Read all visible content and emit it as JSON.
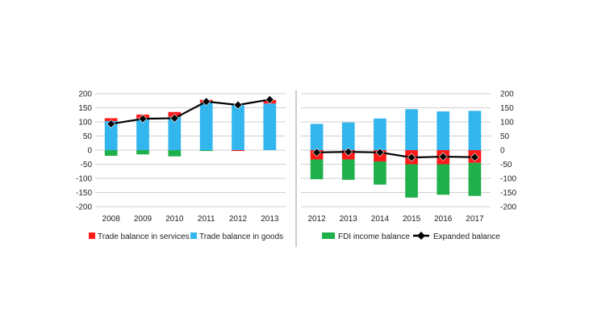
{
  "colors": {
    "services": "#ff1a1a",
    "goods": "#33b5ee",
    "fdi": "#1fb04b",
    "expanded": "#000000",
    "grid": "#d0d0d0",
    "divider": "#9a9a9a"
  },
  "legend": {
    "services": "Trade balance in services",
    "goods": "Trade balance in goods",
    "fdi": "FDI income balance",
    "expanded": "Expanded balance"
  },
  "chart_data": [
    {
      "type": "bar",
      "stacked": true,
      "title": "",
      "xlabel": "",
      "ylabel": "",
      "ylim": [
        -200,
        200
      ],
      "yticks": [
        "200",
        "150",
        "100",
        "50",
        "0",
        "-50",
        "-100",
        "-150",
        "-200"
      ],
      "categories": [
        "2008",
        "2009",
        "2010",
        "2011",
        "2012",
        "2013"
      ],
      "series": [
        {
          "name": "Trade balance in goods",
          "key": "goods",
          "values": [
            103,
            112,
            118,
            168,
            159,
            165
          ]
        },
        {
          "name": "Trade balance in services",
          "key": "services",
          "values": [
            10,
            14,
            17,
            10,
            -3,
            13
          ]
        },
        {
          "name": "FDI income balance",
          "key": "fdi",
          "values": [
            -20,
            -15,
            -22,
            -3,
            0,
            0
          ]
        }
      ],
      "line": {
        "name": "Expanded balance",
        "key": "expanded",
        "values": [
          93,
          111,
          113,
          172,
          160,
          179
        ]
      }
    },
    {
      "type": "bar",
      "stacked": true,
      "title": "",
      "xlabel": "",
      "ylabel": "",
      "ylim": [
        -200,
        200
      ],
      "yticks": [
        "200",
        "150",
        "100",
        "50",
        "0",
        "-50",
        "-100",
        "-150",
        "-200"
      ],
      "categories": [
        "2012",
        "2013",
        "2014",
        "2015",
        "2016",
        "2017"
      ],
      "series": [
        {
          "name": "Trade balance in goods",
          "key": "goods",
          "values": [
            93,
            98,
            112,
            145,
            137,
            139
          ]
        },
        {
          "name": "Trade balance in services",
          "key": "services",
          "values": [
            -33,
            -33,
            -40,
            -50,
            -50,
            -45
          ]
        },
        {
          "name": "FDI income balance",
          "key": "fdi",
          "values": [
            -70,
            -72,
            -82,
            -118,
            -108,
            -117
          ]
        }
      ],
      "line": {
        "name": "Expanded balance",
        "key": "expanded",
        "values": [
          -8,
          -6,
          -8,
          -26,
          -23,
          -25
        ]
      }
    }
  ]
}
